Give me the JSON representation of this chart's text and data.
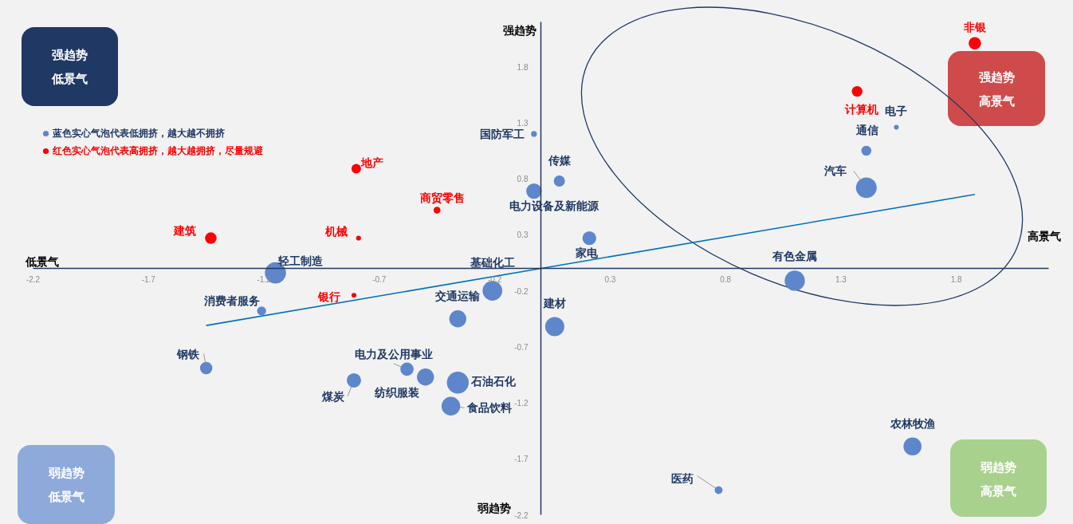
{
  "chart_data": {
    "type": "bubble",
    "xlim": [
      -2.2,
      2.2
    ],
    "ylim": [
      -2.2,
      2.2
    ],
    "xticks": [
      -2.2,
      -1.7,
      -1.2,
      -0.7,
      -0.2,
      0.3,
      0.8,
      1.3,
      1.8
    ],
    "yticks": [
      -2.2,
      -1.7,
      -1.2,
      -0.7,
      -0.2,
      0.3,
      0.8,
      1.3,
      1.8
    ],
    "legend": "top left",
    "series": [
      {
        "type": "line",
        "color": "#0070c0",
        "x": [
          -1.45,
          1.88
        ],
        "values": [
          -0.51,
          0.66
        ]
      },
      {
        "name": "蓝色实心气泡代表低拥挤，越大越不拥挤",
        "color": "#5e86cb",
        "x": [
          -0.03,
          0.08,
          -0.03,
          0.21,
          1.54,
          1.41,
          1.41,
          1.1,
          -1.15,
          -1.21,
          -1.45,
          -0.81,
          -0.58,
          -0.5,
          -0.36,
          -0.39,
          -0.36,
          -0.21,
          0.06,
          0.77,
          1.61
        ],
        "values": [
          1.2,
          0.78,
          0.69,
          0.27,
          1.26,
          1.05,
          0.72,
          -0.11,
          -0.04,
          -0.38,
          -0.89,
          -1,
          -0.9,
          -0.97,
          -1.02,
          -1.23,
          -0.45,
          -0.2,
          -0.52,
          -1.98,
          -1.59
        ],
        "sizes": [
          0.07,
          0.26,
          0.5,
          0.4,
          0.05,
          0.21,
          0.9,
          0.86,
          0.94,
          0.17,
          0.32,
          0.43,
          0.37,
          0.61,
          1,
          0.73,
          0.61,
          0.81,
          0.77,
          0.13,
          0.68
        ]
      },
      {
        "name": "红色实心气泡代表高拥挤，越大越拥挤，尽量规避",
        "color": "#ff0000",
        "x": [
          1.88,
          1.37,
          -0.8,
          -0.45,
          -1.43,
          -0.79,
          -0.81
        ],
        "values": [
          2.01,
          1.58,
          0.89,
          0.52,
          0.27,
          0.27,
          -0.24
        ],
        "sizes": [
          0.32,
          0.24,
          0.19,
          0.1,
          0.28,
          0.05,
          0.05
        ]
      }
    ],
    "annotations": [
      {
        "text": "国防军工",
        "x": -0.03,
        "y": 1.2
      },
      {
        "text": "传媒",
        "x": 0.08,
        "y": 0.78
      },
      {
        "text": "电力设备及新能源",
        "x": -0.03,
        "y": 0.69
      },
      {
        "text": "家电",
        "x": 0.21,
        "y": 0.27
      },
      {
        "text": "电子",
        "x": 1.54,
        "y": 1.26
      },
      {
        "text": "通信",
        "x": 1.41,
        "y": 1.05
      },
      {
        "text": "汽车",
        "x": 1.41,
        "y": 0.72
      },
      {
        "text": "有色金属",
        "x": 1.1,
        "y": -0.11
      },
      {
        "text": "轻工制造",
        "x": -1.15,
        "y": -0.04
      },
      {
        "text": "消费者服务",
        "x": -1.21,
        "y": -0.38
      },
      {
        "text": "钢铁",
        "x": -1.45,
        "y": -0.89
      },
      {
        "text": "煤炭",
        "x": -0.81,
        "y": -1
      },
      {
        "text": "电力及公用事业",
        "x": -0.58,
        "y": -0.9
      },
      {
        "text": "纺织服装",
        "x": -0.5,
        "y": -0.97
      },
      {
        "text": "石油石化",
        "x": -0.36,
        "y": -1.02
      },
      {
        "text": "食品饮料",
        "x": -0.39,
        "y": -1.23
      },
      {
        "text": "交通运输",
        "x": -0.36,
        "y": -0.45
      },
      {
        "text": "基础化工",
        "x": -0.21,
        "y": -0.2
      },
      {
        "text": "建材",
        "x": 0.06,
        "y": -0.52
      },
      {
        "text": "医药",
        "x": 0.77,
        "y": -1.98
      },
      {
        "text": "农林牧渔",
        "x": 1.61,
        "y": -1.59
      },
      {
        "text": "非银",
        "x": 1.88,
        "y": 2.01
      },
      {
        "text": "计算机",
        "x": 1.37,
        "y": 1.58
      },
      {
        "text": "地产",
        "x": -0.8,
        "y": 0.89
      },
      {
        "text": "商贸零售",
        "x": -0.45,
        "y": 0.52
      },
      {
        "text": "建筑",
        "x": -1.43,
        "y": 0.27
      },
      {
        "text": "机械",
        "x": -0.79,
        "y": 0.27
      },
      {
        "text": "银行",
        "x": -0.81,
        "y": -0.24
      },
      "强趋势",
      "弱趋势",
      "低景气",
      "高景气",
      "强趋势低景气",
      "强趋势高景气",
      "弱趋势低景气",
      "弱趋势高景气"
    ]
  }
}
